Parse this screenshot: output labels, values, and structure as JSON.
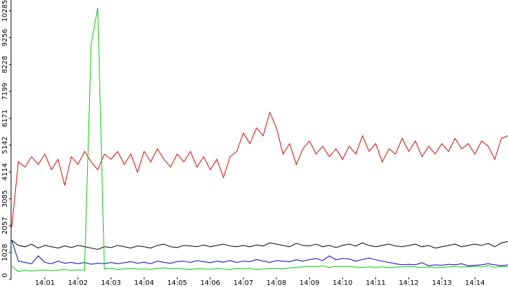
{
  "chart_data": {
    "type": "line",
    "x": [
      840,
      840.2,
      840.4,
      840.6,
      840.8,
      841,
      841.2,
      841.4,
      841.6,
      841.8,
      842,
      842.2,
      842.4,
      842.6,
      842.8,
      843,
      843.2,
      843.4,
      843.6,
      843.8,
      844,
      844.2,
      844.4,
      844.6,
      844.8,
      845,
      845.2,
      845.4,
      845.6,
      845.8,
      846,
      846.2,
      846.4,
      846.6,
      846.8,
      847,
      847.2,
      847.4,
      847.6,
      847.8,
      848,
      848.2,
      848.4,
      848.6,
      848.8,
      849,
      849.2,
      849.4,
      849.6,
      849.8,
      850,
      850.2,
      850.4,
      850.6,
      850.8,
      851,
      851.2,
      851.4,
      851.6,
      851.8,
      852,
      852.2,
      852.4,
      852.6,
      852.8,
      853,
      853.2,
      853.4,
      853.6,
      853.8,
      854,
      854.2,
      854.4,
      854.6,
      854.8,
      855
    ],
    "xlim": [
      840,
      855
    ],
    "xticks": [
      {
        "value": 841,
        "label": "14:01"
      },
      {
        "value": 842,
        "label": "14:02"
      },
      {
        "value": 843,
        "label": "14:03"
      },
      {
        "value": 844,
        "label": "14:04"
      },
      {
        "value": 845,
        "label": "14:05"
      },
      {
        "value": 846,
        "label": "14:06"
      },
      {
        "value": 847,
        "label": "14:07"
      },
      {
        "value": 848,
        "label": "14:08"
      },
      {
        "value": 849,
        "label": "14:09"
      },
      {
        "value": 850,
        "label": "14:10"
      },
      {
        "value": 851,
        "label": "14:11"
      },
      {
        "value": 852,
        "label": "14:12"
      },
      {
        "value": 853,
        "label": "14:13"
      },
      {
        "value": 854,
        "label": "14:14"
      }
    ],
    "ylim": [
      0,
      10700
    ],
    "yticks": [
      0,
      1028,
      2057,
      3085,
      4114,
      5142,
      6171,
      7199,
      8228,
      9256,
      10285
    ],
    "series": [
      {
        "color": "#e00000",
        "values": [
          2000,
          4500,
          4300,
          4700,
          4400,
          4800,
          4200,
          4600,
          3600,
          4700,
          4400,
          4900,
          4500,
          4200,
          4800,
          4600,
          4900,
          4400,
          4800,
          4100,
          4900,
          4500,
          5000,
          4600,
          4300,
          4800,
          4500,
          4900,
          4300,
          4700,
          4200,
          4600,
          3900,
          4700,
          4900,
          5600,
          5200,
          5800,
          5500,
          6400,
          5800,
          4800,
          5200,
          4400,
          5000,
          5300,
          4800,
          5100,
          4700,
          5000,
          4600,
          5100,
          4800,
          5500,
          4900,
          5200,
          4500,
          5000,
          4800,
          5400,
          4900,
          5300,
          4700,
          5100,
          4800,
          5200,
          4900,
          5400,
          5000,
          5200,
          4800,
          5300,
          5100,
          4600,
          5400,
          5500
        ]
      },
      {
        "color": "#000000",
        "values": [
          1500,
          1300,
          1250,
          1350,
          1200,
          1300,
          1250,
          1200,
          1280,
          1220,
          1300,
          1250,
          1200,
          1150,
          1250,
          1220,
          1300,
          1250,
          1200,
          1280,
          1250,
          1200,
          1300,
          1350,
          1250,
          1220,
          1300,
          1280,
          1250,
          1320,
          1250,
          1300,
          1350,
          1280,
          1250,
          1300,
          1250,
          1320,
          1280,
          1400,
          1350,
          1300,
          1250,
          1380,
          1300,
          1280,
          1350,
          1250,
          1300,
          1220,
          1300,
          1350,
          1280,
          1400,
          1300,
          1250,
          1300,
          1350,
          1280,
          1250,
          1300,
          1350,
          1250,
          1300,
          1200,
          1250,
          1300,
          1350,
          1250,
          1300,
          1350,
          1300,
          1380,
          1250,
          1400,
          1450
        ]
      },
      {
        "color": "#0000c0",
        "values": [
          1500,
          700,
          650,
          600,
          900,
          650,
          600,
          700,
          620,
          650,
          600,
          650,
          580,
          620,
          600,
          650,
          600,
          640,
          680,
          620,
          660,
          600,
          700,
          650,
          620,
          680,
          700,
          650,
          720,
          680,
          640,
          700,
          660,
          720,
          650,
          700,
          680,
          760,
          700,
          650,
          720,
          700,
          680,
          750,
          700,
          760,
          800,
          720,
          900,
          750,
          800,
          780,
          700,
          760,
          820,
          750,
          700,
          650,
          600,
          560,
          580,
          560,
          640,
          520,
          560,
          540,
          580,
          560,
          600,
          520,
          540,
          560,
          600,
          560,
          520,
          560
        ]
      },
      {
        "color": "#00d000",
        "values": [
          500,
          300,
          350,
          320,
          340,
          360,
          330,
          350,
          380,
          340,
          360,
          350,
          9000,
          10400,
          400,
          420,
          380,
          400,
          420,
          390,
          400,
          380,
          420,
          440,
          400,
          420,
          400,
          380,
          410,
          400,
          390,
          410,
          400,
          380,
          420,
          400,
          420,
          380,
          400,
          410,
          420,
          400,
          440,
          460,
          480,
          500,
          480,
          520,
          460,
          500,
          480,
          500,
          470,
          460,
          480,
          460,
          480,
          440,
          470,
          480,
          500,
          480,
          460,
          480,
          450,
          460,
          480,
          500,
          470,
          490,
          500,
          480,
          520,
          460,
          500,
          480
        ]
      }
    ]
  }
}
